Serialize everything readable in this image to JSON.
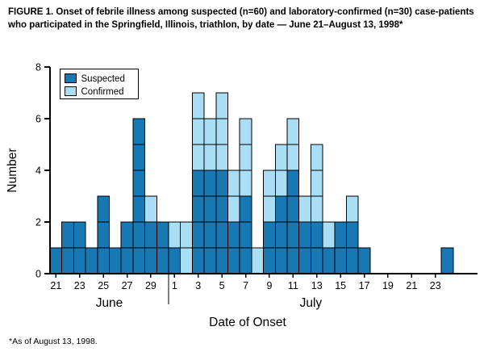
{
  "figure": {
    "title": "FIGURE 1. Onset of febrile illness among suspected (n=60) and laboratory-confirmed (n=30) case-patients who participated in the Springfield, Illinois, triathlon, by date — June 21–August 13, 1998*",
    "footnote": "*As of August 13, 1998."
  },
  "chart_data": {
    "type": "bar",
    "stacked": true,
    "title": "Onset of febrile illness among suspected and laboratory-confirmed case-patients, Springfield, Illinois, triathlon",
    "xlabel": "Date of Onset",
    "ylabel": "Number",
    "ylim": [
      0,
      8
    ],
    "yticks": [
      0,
      2,
      4,
      6,
      8
    ],
    "grid": false,
    "legend_position": "top-left",
    "n_suspected": 60,
    "n_confirmed": 30,
    "categories": [
      "Jun 21",
      "Jun 22",
      "Jun 23",
      "Jun 24",
      "Jun 25",
      "Jun 26",
      "Jun 27",
      "Jun 28",
      "Jun 29",
      "Jun 30",
      "Jul 1",
      "Jul 2",
      "Jul 3",
      "Jul 4",
      "Jul 5",
      "Jul 6",
      "Jul 7",
      "Jul 8",
      "Jul 9",
      "Jul 10",
      "Jul 11",
      "Jul 12",
      "Jul 13",
      "Jul 14",
      "Jul 15",
      "Jul 16",
      "Jul 17",
      "Jul 18",
      "Jul 19",
      "Jul 20",
      "Jul 21",
      "Jul 22",
      "Jul 23",
      "Jul 24"
    ],
    "series": [
      {
        "name": "Suspected",
        "color": "#1878b4",
        "values": [
          1,
          2,
          2,
          1,
          3,
          1,
          2,
          6,
          2,
          2,
          1,
          0,
          4,
          4,
          4,
          2,
          3,
          0,
          2,
          3,
          4,
          2,
          2,
          1,
          2,
          2,
          1,
          0,
          0,
          0,
          0,
          0,
          0,
          1
        ]
      },
      {
        "name": "Confirmed",
        "color": "#a9def5",
        "values": [
          0,
          0,
          0,
          0,
          0,
          0,
          0,
          0,
          1,
          0,
          1,
          2,
          3,
          2,
          3,
          2,
          3,
          1,
          2,
          2,
          2,
          1,
          3,
          1,
          0,
          1,
          0,
          0,
          0,
          0,
          0,
          0,
          0,
          0
        ]
      }
    ],
    "x_axis": {
      "ticks": [
        {
          "i": 0,
          "t": "21"
        },
        {
          "i": 2,
          "t": "23"
        },
        {
          "i": 4,
          "t": "25"
        },
        {
          "i": 6,
          "t": "27"
        },
        {
          "i": 8,
          "t": "29"
        },
        {
          "i": 10,
          "t": "1"
        },
        {
          "i": 12,
          "t": "3"
        },
        {
          "i": 14,
          "t": "5"
        },
        {
          "i": 16,
          "t": "7"
        },
        {
          "i": 18,
          "t": "9"
        },
        {
          "i": 20,
          "t": "11"
        },
        {
          "i": 22,
          "t": "13"
        },
        {
          "i": 24,
          "t": "15"
        },
        {
          "i": 26,
          "t": "17"
        },
        {
          "i": 28,
          "t": "19"
        },
        {
          "i": 30,
          "t": "21"
        },
        {
          "i": 32,
          "t": "23"
        }
      ],
      "months": [
        {
          "label": "June",
          "start": 0,
          "end": 9
        },
        {
          "label": "July",
          "start": 10,
          "end": 33
        }
      ]
    }
  }
}
